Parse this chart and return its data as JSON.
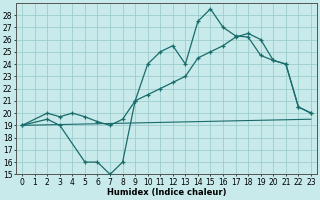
{
  "xlabel": "Humidex (Indice chaleur)",
  "bg_color": "#c8eaea",
  "grid_color": "#9ecece",
  "line_color": "#1a6b6b",
  "xlim": [
    -0.5,
    23.5
  ],
  "ylim": [
    15,
    29
  ],
  "xticks": [
    0,
    1,
    2,
    3,
    4,
    5,
    6,
    7,
    8,
    9,
    10,
    11,
    12,
    13,
    14,
    15,
    16,
    17,
    18,
    19,
    20,
    21,
    22,
    23
  ],
  "yticks": [
    15,
    16,
    17,
    18,
    19,
    20,
    21,
    22,
    23,
    24,
    25,
    26,
    27,
    28
  ],
  "line1_x": [
    0,
    23
  ],
  "line1_y": [
    19,
    19.5
  ],
  "line2_x": [
    0,
    2,
    3,
    5,
    6,
    7,
    8,
    9,
    10,
    11,
    12,
    13,
    14,
    15,
    16,
    17,
    18,
    19,
    20,
    21,
    22,
    23
  ],
  "line2_y": [
    19,
    19.5,
    19,
    16,
    16,
    15,
    16,
    21,
    24,
    25,
    25.5,
    24,
    27.5,
    28.5,
    27,
    26.3,
    26.2,
    24.7,
    24.3,
    24,
    20.5,
    20
  ],
  "line3_x": [
    0,
    2,
    3,
    4,
    5,
    6,
    7,
    8,
    9,
    10,
    11,
    12,
    13,
    14,
    15,
    16,
    17,
    18,
    19,
    20,
    21,
    22,
    23
  ],
  "line3_y": [
    19,
    20,
    19.7,
    20,
    19.7,
    19.3,
    19,
    19.5,
    21,
    21.5,
    22,
    22.5,
    23,
    24.5,
    25,
    25.5,
    26.2,
    26.5,
    26,
    24.3,
    24,
    20.5,
    20
  ],
  "xtick_fontsize": 5.5,
  "ytick_fontsize": 5.5,
  "xlabel_fontsize": 6.0
}
